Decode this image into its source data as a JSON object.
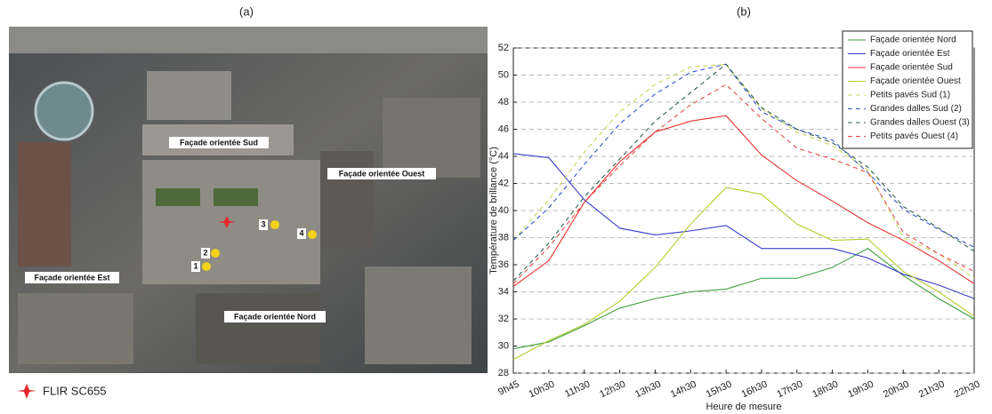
{
  "photo": {
    "panel_label": "(a)",
    "facade_labels": [
      "Façade orientée Sud",
      "Façade orientée Ouest",
      "Façade orientée Est",
      "Façade orientée Nord"
    ],
    "markers": [
      "1",
      "2",
      "3",
      "4"
    ],
    "legend": "FLIR SC655"
  },
  "chart_data": {
    "type": "line",
    "panel_label": "(b)",
    "x_label": "Heure de mesure",
    "y_label": "Température de brillance (°C)",
    "categories": [
      "9h45",
      "10h30",
      "11h30",
      "12h30",
      "13h30",
      "14h30",
      "15h30",
      "16h30",
      "17h30",
      "18h30",
      "19h30",
      "20h30",
      "21h30",
      "22h30"
    ],
    "ylim": [
      28,
      52
    ],
    "yticks": [
      28,
      30,
      32,
      34,
      36,
      38,
      40,
      42,
      44,
      46,
      48,
      50,
      52
    ],
    "grid": true,
    "legend_position": "upper right",
    "series": [
      {
        "name": "Façade orientée Nord",
        "color": "#3ca03c",
        "style": "solid",
        "values": [
          29.8,
          30.3,
          31.5,
          32.8,
          33.5,
          34.0,
          34.2,
          35.0,
          35.0,
          35.8,
          37.2,
          35.2,
          33.5,
          32.0
        ]
      },
      {
        "name": "Façade orientée Est",
        "color": "#3a3acc",
        "style": "solid",
        "values": [
          44.2,
          43.9,
          40.8,
          38.7,
          38.2,
          38.5,
          38.9,
          37.2,
          37.2,
          37.2,
          36.5,
          35.3,
          34.5,
          33.5
        ]
      },
      {
        "name": "Façade orientée Sud",
        "color": "#e83030",
        "style": "solid",
        "values": [
          34.4,
          36.3,
          40.6,
          43.6,
          45.8,
          46.6,
          47.0,
          44.1,
          42.2,
          40.7,
          39.1,
          37.8,
          36.3,
          34.6
        ]
      },
      {
        "name": "Façade orientée Ouest",
        "color": "#b5cc2e",
        "style": "solid",
        "values": [
          29.0,
          30.4,
          31.6,
          33.3,
          35.8,
          39.0,
          41.7,
          41.2,
          39.0,
          37.8,
          37.9,
          35.5,
          34.0,
          32.2
        ]
      },
      {
        "name": "Petits pavés Sud (1)",
        "color": "#c8d85a",
        "style": "dashed",
        "values": [
          37.8,
          40.8,
          44.3,
          47.3,
          49.3,
          50.6,
          50.8,
          47.5,
          45.8,
          44.8,
          43.0,
          38.0,
          36.8,
          35.0
        ]
      },
      {
        "name": "Grandes dalles Sud (2)",
        "color": "#3355cc",
        "style": "dashed",
        "values": [
          37.8,
          40.2,
          43.4,
          46.4,
          48.6,
          50.2,
          50.8,
          47.3,
          46.0,
          45.2,
          42.8,
          40.1,
          38.6,
          37.3
        ]
      },
      {
        "name": "Grandes dalles Ouest (3)",
        "color": "#2f5f4f",
        "style": "dashed",
        "values": [
          34.8,
          37.6,
          41.0,
          43.8,
          46.6,
          48.7,
          50.8,
          47.6,
          46.0,
          45.0,
          43.2,
          40.3,
          38.7,
          37.0
        ]
      },
      {
        "name": "Petits pavés Ouest (4)",
        "color": "#e84a4a",
        "style": "dashed",
        "values": [
          34.6,
          37.3,
          40.6,
          43.3,
          45.8,
          47.8,
          49.3,
          46.8,
          44.6,
          43.8,
          42.8,
          38.4,
          36.8,
          35.5
        ]
      }
    ]
  }
}
